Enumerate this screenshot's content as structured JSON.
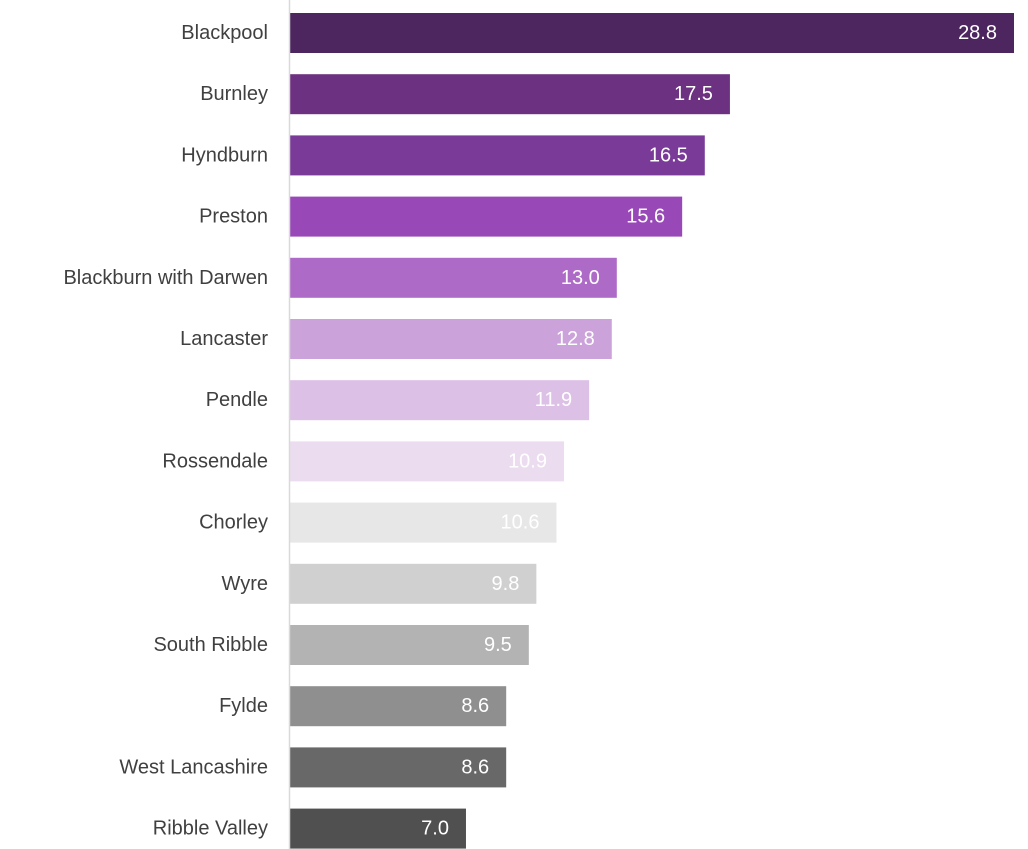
{
  "chart_data": {
    "type": "bar",
    "orientation": "horizontal",
    "title": "",
    "xlabel": "",
    "ylabel": "",
    "xlim": [
      0,
      29
    ],
    "grid": false,
    "legend": "none",
    "categories": [
      "Blackpool",
      "Burnley",
      "Hyndburn",
      "Preston",
      "Blackburn with Darwen",
      "Lancaster",
      "Pendle",
      "Rossendale",
      "Chorley",
      "Wyre",
      "South Ribble",
      "Fylde",
      "West Lancashire",
      "Ribble Valley"
    ],
    "values": [
      28.8,
      17.5,
      16.5,
      15.6,
      13.0,
      12.8,
      11.9,
      10.9,
      10.6,
      9.8,
      9.5,
      8.6,
      8.6,
      7.0
    ],
    "value_labels": [
      "28.8",
      "17.5",
      "16.5",
      "15.6",
      "13.0",
      "12.8",
      "11.9",
      "10.9",
      "10.6",
      "9.8",
      "9.5",
      "8.6",
      "8.6",
      "7.0"
    ],
    "bar_colors": [
      "#4d2660",
      "#6d3181",
      "#7a3b98",
      "#9848b7",
      "#ae6ac7",
      "#cba2da",
      "#dcc0e6",
      "#ecdcf0",
      "#e7e7e7",
      "#d0d0d0",
      "#b3b3b3",
      "#8f8f8f",
      "#686868",
      "#505050"
    ],
    "label_colors": [
      "#ffffff",
      "#ffffff",
      "#ffffff",
      "#ffffff",
      "#ffffff",
      "#ffffff",
      "#ffffff",
      "#ffffff",
      "#ffffff",
      "#ffffff",
      "#ffffff",
      "#ffffff",
      "#ffffff",
      "#ffffff"
    ],
    "axis_color": "#d9d9d9",
    "category_label_color": "#404040"
  }
}
